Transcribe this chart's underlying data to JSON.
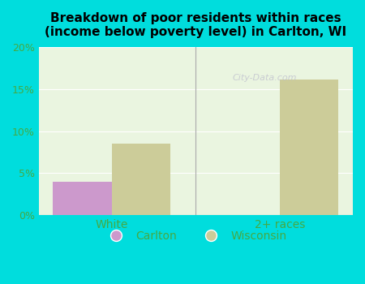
{
  "title": "Breakdown of poor residents within races\n(income below poverty level) in Carlton, WI",
  "categories": [
    "White",
    "2+ races"
  ],
  "carlton_values": [
    4.0,
    0.0
  ],
  "wisconsin_values": [
    8.5,
    16.2
  ],
  "carlton_color": "#cc99cc",
  "wisconsin_color": "#cccc99",
  "background_color": "#00dddd",
  "plot_bg_color": "#eaf5e0",
  "axis_label_color": "#44aa44",
  "title_color": "#000000",
  "ylim": [
    0,
    20
  ],
  "yticks": [
    0,
    5,
    10,
    15,
    20
  ],
  "ytick_labels": [
    "0%",
    "5%",
    "10%",
    "15%",
    "20%"
  ],
  "bar_width": 0.35,
  "watermark": "City-Data.com",
  "legend_labels": [
    "Carlton",
    "Wisconsin"
  ]
}
